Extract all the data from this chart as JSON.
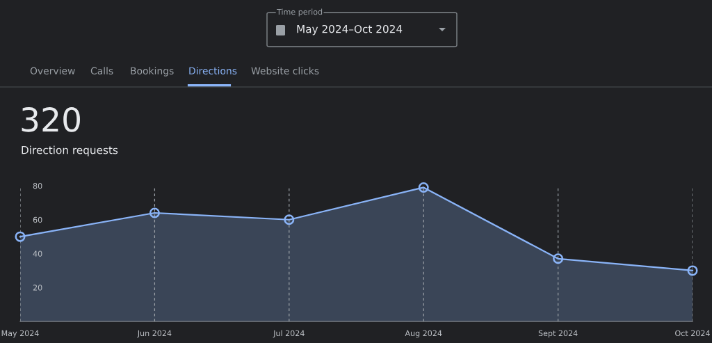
{
  "chart_data": {
    "type": "area",
    "title": "320",
    "subtitle": "Direction requests",
    "annotations": [
      "Time period",
      "May 2024–Oct 2024",
      "Overview",
      "Calls",
      "Bookings",
      "Directions",
      "Website clicks"
    ],
    "categories": [
      "May 2024",
      "Jun 2024",
      "Jul 2024",
      "Aug 2024",
      "Sept 2024",
      "Oct 2024"
    ],
    "series": [
      {
        "color": "#8ab4f8",
        "values": [
          50,
          64,
          60,
          79,
          37,
          30
        ]
      }
    ],
    "ylim": [
      0,
      80
    ],
    "yticks": [
      20,
      40,
      60,
      80
    ],
    "grid": "x",
    "marker": "circle",
    "line_style": "solid"
  }
}
